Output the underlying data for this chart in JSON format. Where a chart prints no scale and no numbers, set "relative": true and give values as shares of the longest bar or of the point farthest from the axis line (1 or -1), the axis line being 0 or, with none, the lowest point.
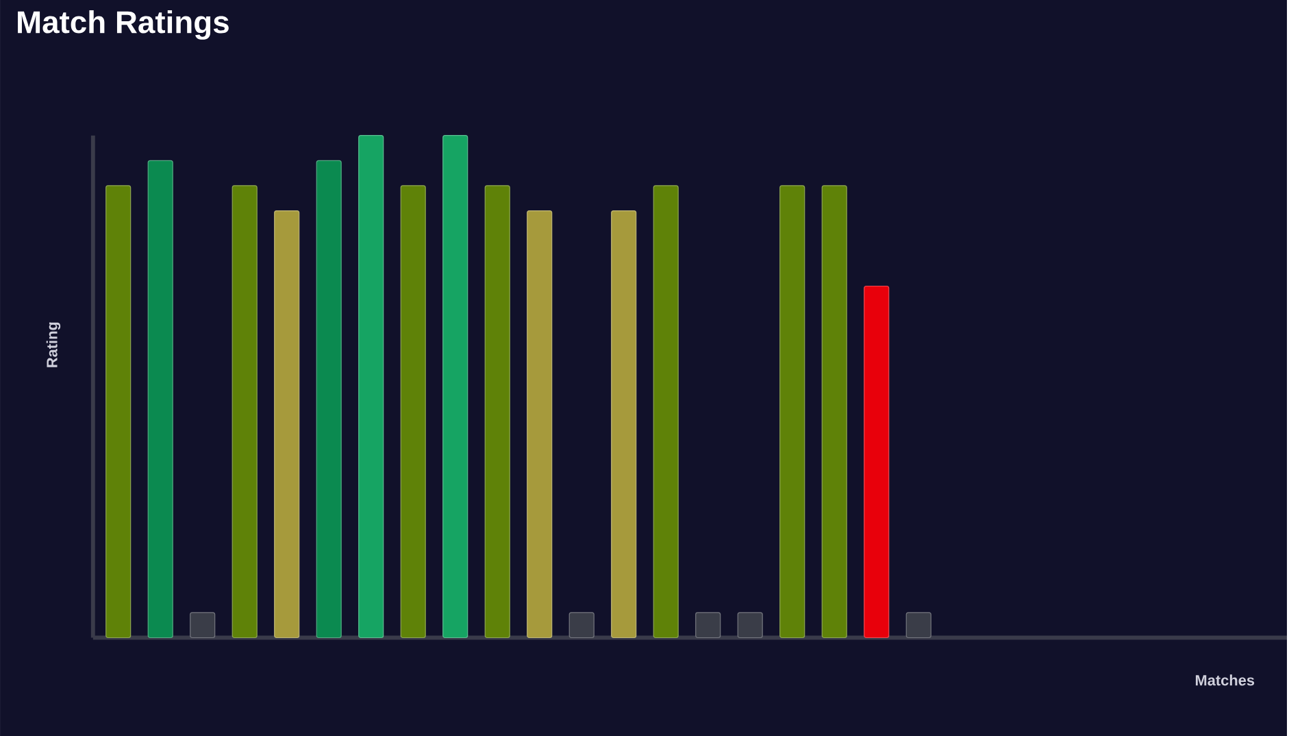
{
  "chart_data": {
    "type": "bar",
    "title": "Match Ratings",
    "annotations": [
      "Matches"
    ],
    "ylabel": "Rating",
    "relative": true,
    "categories": [
      null,
      null,
      null,
      null,
      null,
      null,
      null,
      null,
      null,
      null,
      null,
      null,
      null,
      null,
      null,
      null,
      null,
      null,
      null,
      null
    ],
    "values": [
      0.9,
      0.95,
      0.05,
      0.9,
      0.85,
      0.95,
      1.0,
      0.9,
      1.0,
      0.9,
      0.85,
      0.05,
      0.85,
      0.9,
      0.05,
      0.05,
      0.9,
      0.9,
      0.7,
      0.05
    ],
    "colors": [
      "#5f8208",
      "#0b8a50",
      "#3a3d48",
      "#5f8208",
      "#a69a3c",
      "#0b8a50",
      "#16a463",
      "#5f8208",
      "#16a463",
      "#5f8208",
      "#a69a3c",
      "#3a3d48",
      "#a69a3c",
      "#5f8208",
      "#3a3d48",
      "#3a3d48",
      "#5f8208",
      "#5f8208",
      "#e8000b",
      "#3a3d48"
    ]
  }
}
